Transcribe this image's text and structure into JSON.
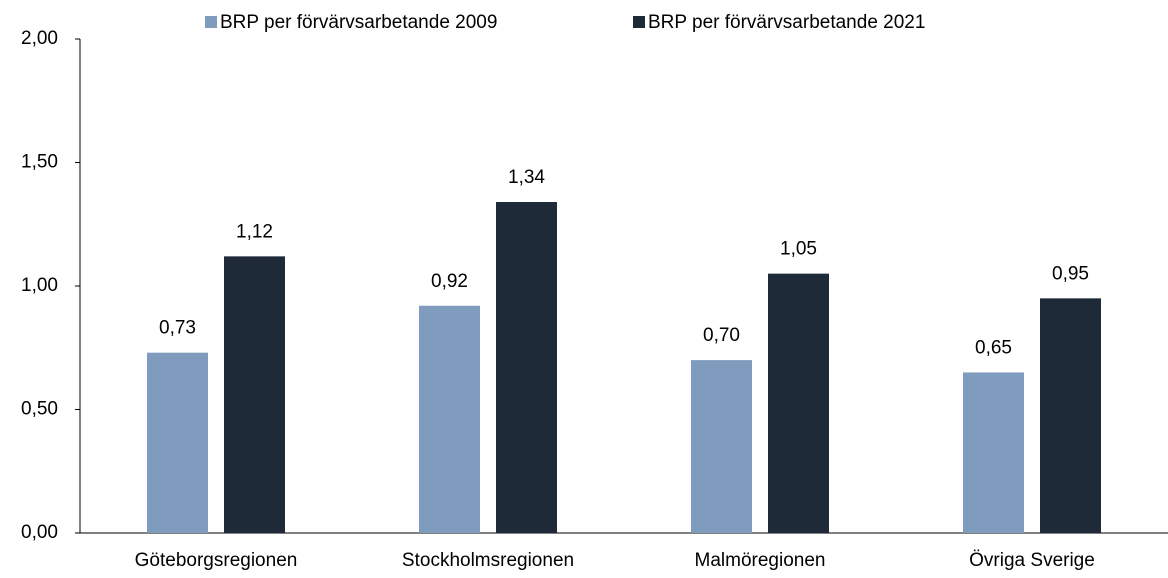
{
  "chart_data": {
    "type": "bar",
    "categories": [
      "Göteborgsregionen",
      "Stockholmsregionen",
      "Malmöregionen",
      "Övriga Sverige"
    ],
    "series": [
      {
        "name": "BRP per förvärvsarbetande 2009",
        "color": "#7f9cbf",
        "values": [
          0.73,
          0.92,
          0.7,
          0.65
        ],
        "value_labels": [
          "0,73",
          "0,92",
          "0,70",
          "0,65"
        ]
      },
      {
        "name": "BRP per förvärvsarbetande 2021",
        "color": "#1f2a38",
        "values": [
          1.12,
          1.34,
          1.05,
          0.95
        ],
        "value_labels": [
          "1,12",
          "1,34",
          "1,05",
          "0,95"
        ]
      }
    ],
    "ylim": [
      0,
      2
    ],
    "yticks": [
      {
        "value": 0,
        "label": "0,00"
      },
      {
        "value": 0.5,
        "label": "0,50"
      },
      {
        "value": 1,
        "label": "1,00"
      },
      {
        "value": 1.5,
        "label": "1,50"
      },
      {
        "value": 2,
        "label": "2,00"
      }
    ],
    "legend": "top",
    "grid": false
  }
}
